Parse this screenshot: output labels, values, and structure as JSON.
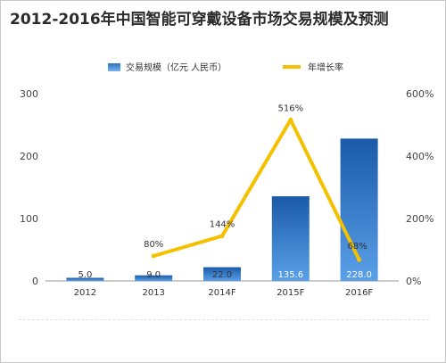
{
  "chart_data": {
    "type": "bar",
    "title": "2012-2016年中国智能可穿戴设备市场交易规模及预测",
    "categories": [
      "2012",
      "2013",
      "2014F",
      "2015F",
      "2016F"
    ],
    "series": [
      {
        "name": "交易规模（亿元 人民币）",
        "type": "bar",
        "axis": "left",
        "values": [
          5.0,
          9.0,
          22.0,
          135.6,
          228.0
        ],
        "value_labels": [
          "5.0",
          "9.0",
          "22.0",
          "135.6",
          "228.0"
        ]
      },
      {
        "name": "年增长率",
        "type": "line",
        "axis": "right",
        "values": [
          null,
          80,
          144,
          516,
          68
        ],
        "value_labels": [
          "",
          "80%",
          "144%",
          "516%",
          "68%"
        ]
      }
    ],
    "left_axis": {
      "ylim": [
        0,
        300
      ],
      "ticks": [
        "0",
        "100",
        "200",
        "300"
      ]
    },
    "right_axis": {
      "ylim": [
        0,
        600
      ],
      "ticks": [
        "0%",
        "200%",
        "400%",
        "600%"
      ]
    },
    "legend_position": "top",
    "grid": false,
    "colors": {
      "bar": "#1e64b4",
      "bar_light": "#4a90d9",
      "line": "#f5c000"
    }
  }
}
